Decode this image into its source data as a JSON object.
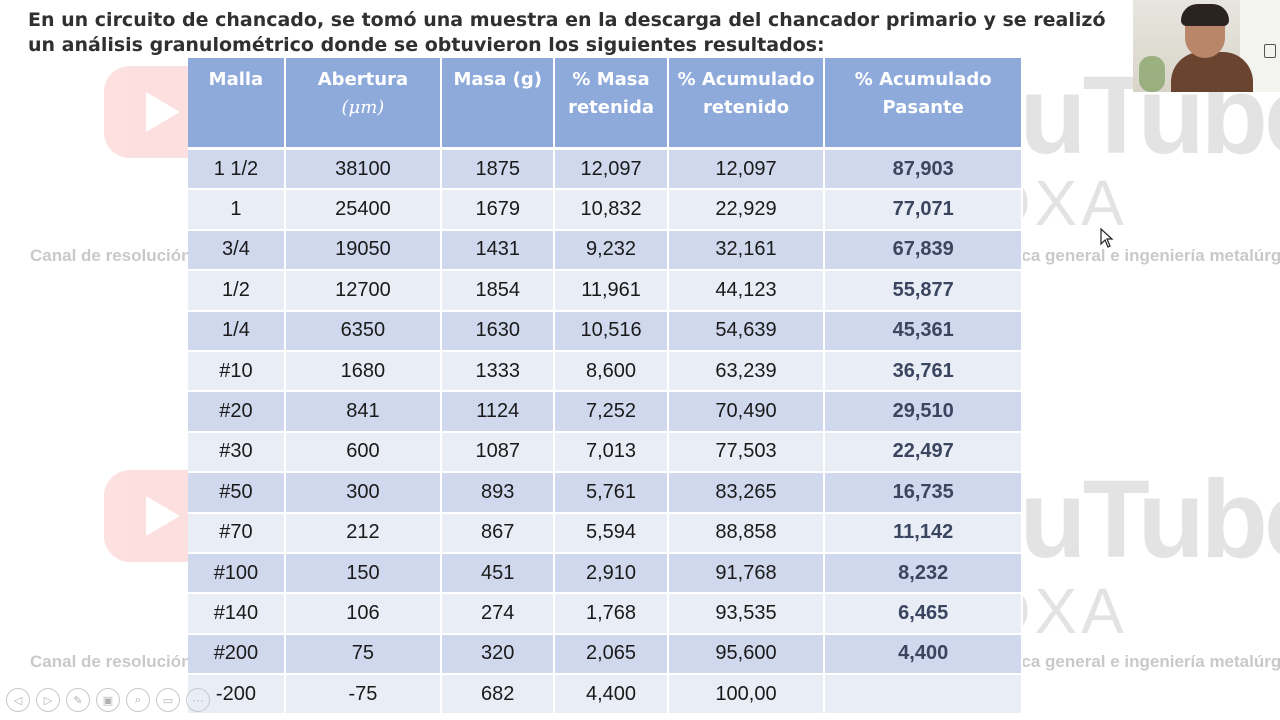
{
  "slide": {
    "title": "En un circuito de chancado, se tomó una muestra en la descarga del chancador primario y se realizó un análisis granulométrico donde se obtuvieron los siguientes resultados:"
  },
  "watermark": {
    "brand": "YouTube",
    "channel": "EL OXA",
    "caption": "Canal de resolución de problemas de química general e ingeniería metalúrgica"
  },
  "table": {
    "headers": [
      {
        "line1": "Malla",
        "line2": ""
      },
      {
        "line1": "Abertura",
        "line2": "(μm)"
      },
      {
        "line1": "Masa (g)",
        "line2": ""
      },
      {
        "line1": "% Masa",
        "line2": "retenida"
      },
      {
        "line1": "% Acumulado",
        "line2": "retenido"
      },
      {
        "line1": "% Acumulado",
        "line2": "Pasante"
      }
    ],
    "rows": [
      [
        "1 1/2",
        "38100",
        "1875",
        "12,097",
        "12,097",
        "87,903"
      ],
      [
        "1",
        "25400",
        "1679",
        "10,832",
        "22,929",
        "77,071"
      ],
      [
        "3/4",
        "19050",
        "1431",
        "9,232",
        "32,161",
        "67,839"
      ],
      [
        "1/2",
        "12700",
        "1854",
        "11,961",
        "44,123",
        "55,877"
      ],
      [
        "1/4",
        "6350",
        "1630",
        "10,516",
        "54,639",
        "45,361"
      ],
      [
        "#10",
        "1680",
        "1333",
        "8,600",
        "63,239",
        "36,761"
      ],
      [
        "#20",
        "841",
        "1124",
        "7,252",
        "70,490",
        "29,510"
      ],
      [
        "#30",
        "600",
        "1087",
        "7,013",
        "77,503",
        "22,497"
      ],
      [
        "#50",
        "300",
        "893",
        "5,761",
        "83,265",
        "16,735"
      ],
      [
        "#70",
        "212",
        "867",
        "5,594",
        "88,858",
        "11,142"
      ],
      [
        "#100",
        "150",
        "451",
        "2,910",
        "91,768",
        "8,232"
      ],
      [
        "#140",
        "106",
        "274",
        "1,768",
        "93,535",
        "6,465"
      ],
      [
        "#200",
        "75",
        "320",
        "2,065",
        "95,600",
        "4,400"
      ],
      [
        "-200",
        "-75",
        "682",
        "4,400",
        "100,00",
        ""
      ]
    ]
  },
  "controls": [
    {
      "icon": "prev-slide-icon",
      "glyph": "◁"
    },
    {
      "icon": "next-slide-icon",
      "glyph": "▷"
    },
    {
      "icon": "pen-icon",
      "glyph": "✎"
    },
    {
      "icon": "slides-grid-icon",
      "glyph": "▣"
    },
    {
      "icon": "zoom-icon",
      "glyph": "⌕"
    },
    {
      "icon": "subtitles-icon",
      "glyph": "▭"
    },
    {
      "icon": "more-options-icon",
      "glyph": "⋯"
    }
  ],
  "colors": {
    "header_bg": "#8eaadb",
    "row_odd": "#cfd8ec",
    "row_even": "#e9edf6",
    "title_text": "#303030"
  }
}
